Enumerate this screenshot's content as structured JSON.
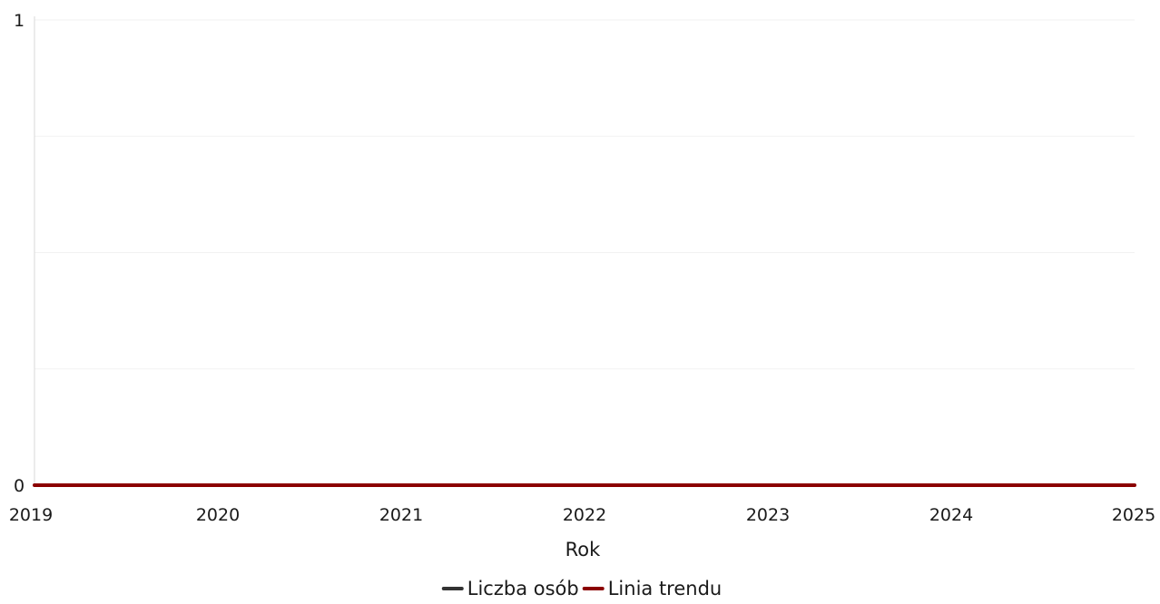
{
  "chart_data": {
    "type": "line",
    "title": "",
    "xlabel": "Rok",
    "ylabel": "",
    "x": [
      "2019",
      "2020",
      "2021",
      "2022",
      "2023",
      "2024",
      "2025"
    ],
    "ylim": [
      0,
      1
    ],
    "yticks": [
      "0",
      "1"
    ],
    "grid": true,
    "legend_position": "bottom-center",
    "series": [
      {
        "name": "Liczba osób",
        "color": "#333333",
        "values": [
          0,
          0,
          0,
          0,
          0,
          0,
          0
        ]
      },
      {
        "name": "Linia trendu",
        "color": "#8b0000",
        "values": [
          0,
          0,
          0,
          0,
          0,
          0,
          0
        ]
      }
    ]
  }
}
